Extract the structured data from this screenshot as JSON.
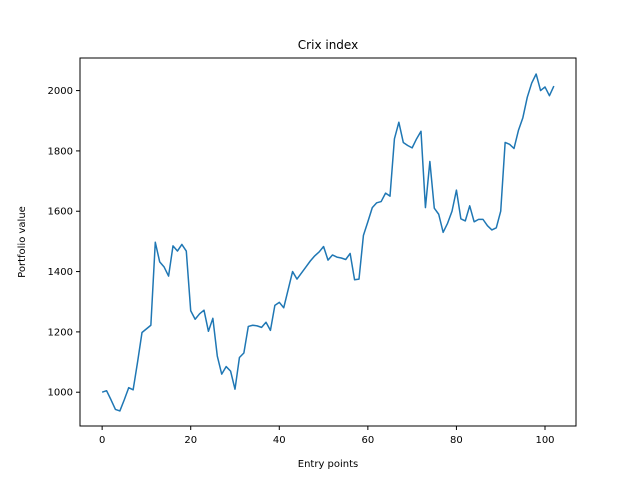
{
  "chart_data": {
    "type": "line",
    "title": "Crix index",
    "xlabel": "Entry points",
    "ylabel": "Portfolio value",
    "xlim": [
      -5,
      107
    ],
    "ylim": [
      888,
      2108
    ],
    "xticks": [
      0,
      20,
      40,
      60,
      80,
      100
    ],
    "yticks": [
      1000,
      1200,
      1400,
      1600,
      1800,
      2000
    ],
    "grid": false,
    "line_color": "#1f77b4",
    "series": [
      {
        "name": "Crix index",
        "x": [
          0,
          1,
          2,
          3,
          4,
          5,
          6,
          7,
          8,
          9,
          10,
          11,
          12,
          13,
          14,
          15,
          16,
          17,
          18,
          19,
          20,
          21,
          22,
          23,
          24,
          25,
          26,
          27,
          28,
          29,
          30,
          31,
          32,
          33,
          34,
          35,
          36,
          37,
          38,
          39,
          40,
          41,
          42,
          43,
          44,
          45,
          46,
          47,
          48,
          49,
          50,
          51,
          52,
          53,
          54,
          55,
          56,
          57,
          58,
          59,
          60,
          61,
          62,
          63,
          64,
          65,
          66,
          67,
          68,
          69,
          70,
          71,
          72,
          73,
          74,
          75,
          76,
          77,
          78,
          79,
          80,
          81,
          82,
          83,
          84,
          85,
          86,
          87,
          88,
          89,
          90,
          91,
          92,
          93,
          94,
          95,
          96,
          97,
          98,
          99,
          100,
          101,
          102
        ],
        "values": [
          1000,
          1005,
          975,
          943,
          938,
          975,
          1015,
          1008,
          1100,
          1198,
          1210,
          1222,
          1497,
          1432,
          1415,
          1385,
          1485,
          1468,
          1490,
          1468,
          1270,
          1242,
          1260,
          1272,
          1202,
          1245,
          1120,
          1060,
          1085,
          1070,
          1010,
          1115,
          1130,
          1218,
          1222,
          1220,
          1215,
          1232,
          1205,
          1288,
          1298,
          1280,
          1340,
          1400,
          1375,
          1395,
          1415,
          1435,
          1452,
          1465,
          1483,
          1438,
          1455,
          1448,
          1445,
          1440,
          1460,
          1373,
          1375,
          1520,
          1565,
          1612,
          1628,
          1632,
          1660,
          1650,
          1840,
          1895,
          1828,
          1818,
          1810,
          1840,
          1865,
          1612,
          1765,
          1610,
          1590,
          1530,
          1560,
          1600,
          1670,
          1575,
          1568,
          1618,
          1565,
          1573,
          1573,
          1552,
          1538,
          1545,
          1600,
          1828,
          1822,
          1808,
          1868,
          1910,
          1978,
          2025,
          2055,
          2000,
          2012,
          1983,
          2015
        ]
      }
    ]
  }
}
